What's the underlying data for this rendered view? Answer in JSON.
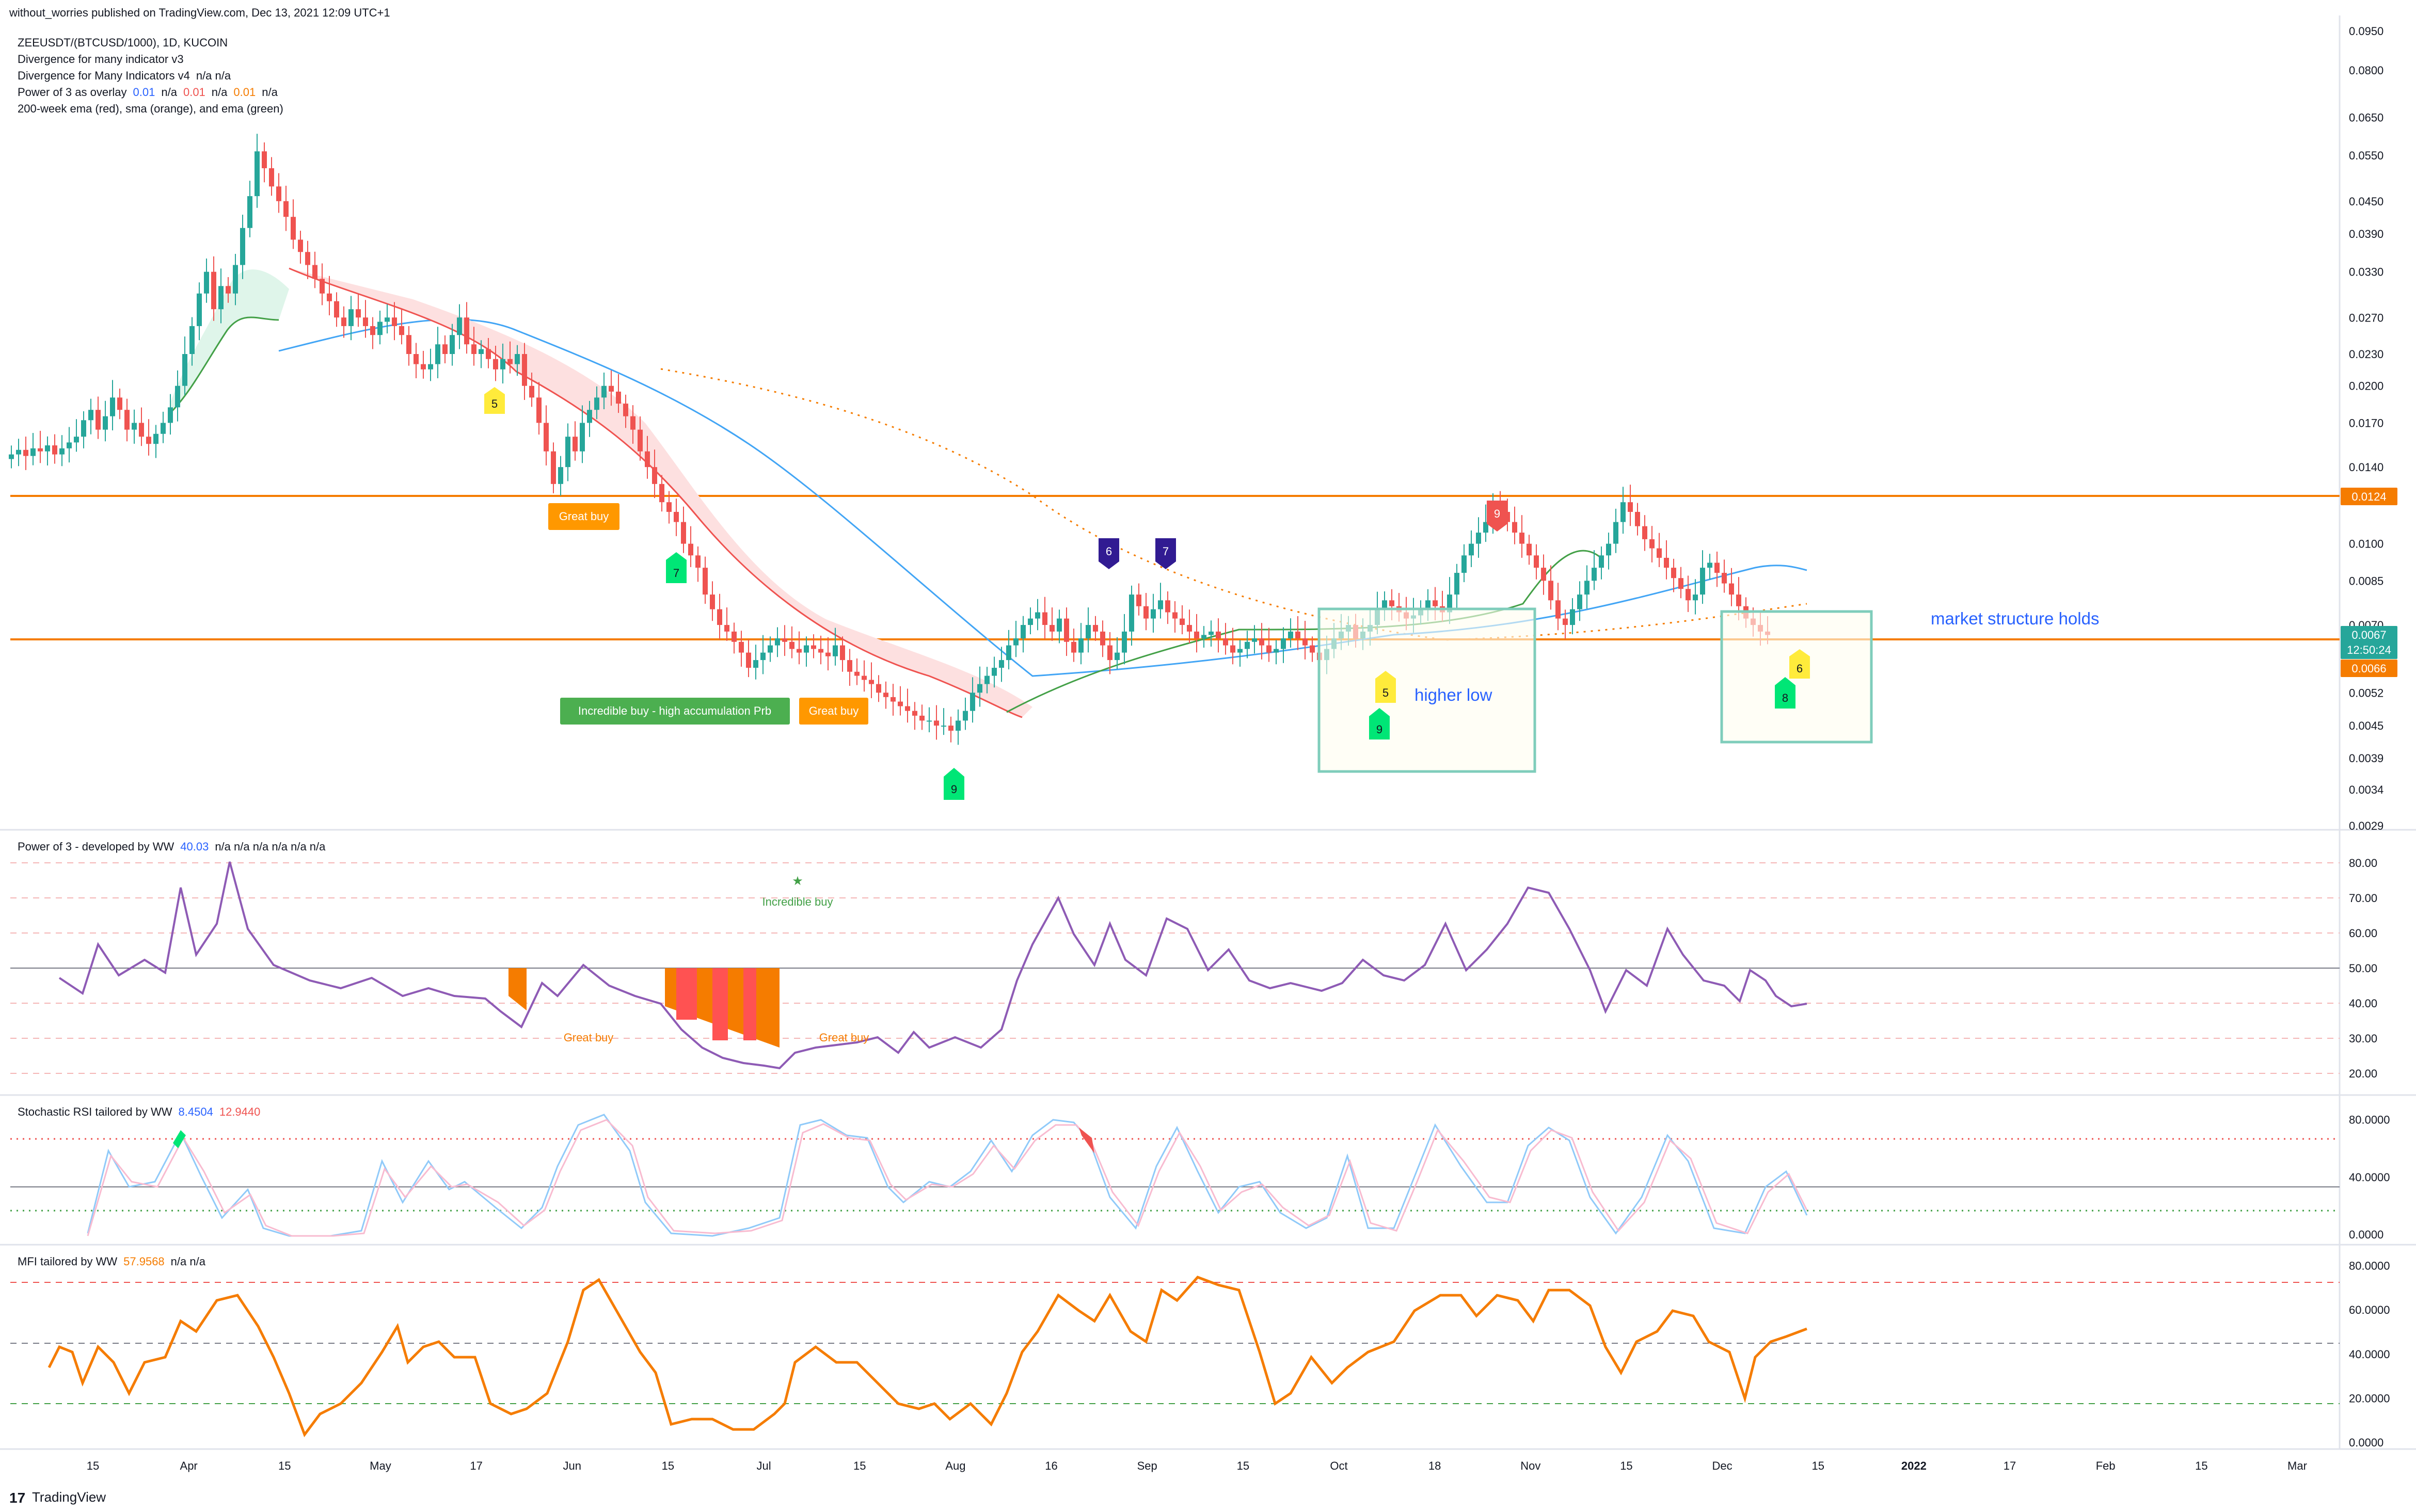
{
  "header": {
    "publish_line": "without_worries published on TradingView.com, Dec 13, 2021 12:09 UTC+1"
  },
  "legend": {
    "symbol_line": "ZEEUSDT/(BTCUSD/1000), 1D, KUCOIN",
    "indicator_1": "Divergence for many indicator v3",
    "indicator_2_name": "Divergence for Many Indicators v4",
    "indicator_2_vals": "n/a  n/a",
    "indicator_3_name": "Power of 3 as overlay",
    "indicator_3_v1": "0.01",
    "indicator_3_v2": "n/a",
    "indicator_3_v3": "0.01",
    "indicator_3_v4": "n/a",
    "indicator_3_v5": "0.01",
    "indicator_3_v6": "n/a",
    "indicator_4": "200-week ema (red), sma (orange), and ema (green)"
  },
  "panes": {
    "p3_title": "Power of 3 - developed by WW",
    "p3_value": "40.03",
    "p3_na": "n/a  n/a  n/a  n/a  n/a  n/a",
    "stoch_title": "Stochastic RSI tailored by WW",
    "stoch_k": "8.4504",
    "stoch_d": "12.9440",
    "mfi_title": "MFI tailored by WW",
    "mfi_value": "57.9568",
    "mfi_na": "n/a  n/a"
  },
  "annotations": {
    "great_buy_1": "Great buy",
    "great_buy_2": "Great buy",
    "incredible_buy_label": "Incredible buy - high accumulation Prb",
    "higher_low": "higher low",
    "market_structure": "market structure holds",
    "p3_great_buy_1": "Great buy",
    "p3_great_buy_2": "Great buy",
    "p3_incredible": "Incredible buy",
    "td_5a": "5",
    "td_7a": "7",
    "td_9a": "9",
    "td_6b": "6",
    "td_7b": "7",
    "td_9r": "9",
    "td_5b": "5",
    "td_9b": "9",
    "td_6c": "6",
    "td_8c": "8"
  },
  "price_badges": {
    "resistance": "0.0124",
    "last": "0.0067",
    "countdown": "12:50:24",
    "support": "0.0066"
  },
  "footer": {
    "brand": "TradingView"
  },
  "colors": {
    "up": "#26a69a",
    "down": "#ef5350",
    "orange_line": "#f57c00",
    "box": "#7fcdbb",
    "blue_text": "#2962ff",
    "text": "#131722"
  },
  "chart_data": {
    "type": "candlestick",
    "title": "ZEEUSDT/(BTCUSD/1000), 1D, KUCOIN",
    "y_scale": "log",
    "price_axis_ticks": [
      "0.0950",
      "0.0800",
      "0.0650",
      "0.0550",
      "0.0450",
      "0.0390",
      "0.0330",
      "0.0270",
      "0.0230",
      "0.0200",
      "0.0170",
      "0.0140",
      "0.0100",
      "0.0085",
      "0.0070",
      "0.0052",
      "0.0045",
      "0.0039",
      "0.0034",
      "0.0029"
    ],
    "time_axis_ticks": [
      "15",
      "Apr",
      "15",
      "May",
      "17",
      "Jun",
      "15",
      "Jul",
      "15",
      "Aug",
      "16",
      "Sep",
      "15",
      "Oct",
      "18",
      "Nov",
      "15",
      "Dec",
      "15",
      "2022",
      "17",
      "Feb",
      "15",
      "Mar"
    ],
    "horizontal_levels": [
      0.0124,
      0.0066
    ],
    "close_series": {
      "start": "2021-03-01",
      "interval": "1D",
      "values": [
        0.0148,
        0.0151,
        0.0147,
        0.0152,
        0.015,
        0.0154,
        0.0148,
        0.0152,
        0.0156,
        0.016,
        0.0172,
        0.018,
        0.0165,
        0.0175,
        0.019,
        0.018,
        0.0165,
        0.017,
        0.016,
        0.0155,
        0.0162,
        0.017,
        0.0182,
        0.02,
        0.023,
        0.026,
        0.03,
        0.033,
        0.028,
        0.031,
        0.03,
        0.034,
        0.04,
        0.046,
        0.056,
        0.052,
        0.048,
        0.045,
        0.042,
        0.038,
        0.036,
        0.034,
        0.032,
        0.03,
        0.029,
        0.027,
        0.026,
        0.028,
        0.027,
        0.026,
        0.025,
        0.0265,
        0.027,
        0.026,
        0.025,
        0.023,
        0.022,
        0.0215,
        0.022,
        0.024,
        0.023,
        0.025,
        0.027,
        0.024,
        0.023,
        0.0235,
        0.0225,
        0.0215,
        0.0225,
        0.022,
        0.023,
        0.02,
        0.019,
        0.017,
        0.015,
        0.013,
        0.014,
        0.016,
        0.015,
        0.017,
        0.018,
        0.019,
        0.02,
        0.0195,
        0.0185,
        0.0175,
        0.0165,
        0.015,
        0.014,
        0.013,
        0.012,
        0.0115,
        0.011,
        0.01,
        0.0095,
        0.009,
        0.008,
        0.0075,
        0.007,
        0.0068,
        0.0065,
        0.0062,
        0.0058,
        0.006,
        0.0062,
        0.0064,
        0.0066,
        0.0065,
        0.0063,
        0.0062,
        0.0064,
        0.0063,
        0.0062,
        0.0061,
        0.0064,
        0.006,
        0.0057,
        0.0056,
        0.0055,
        0.0054,
        0.0052,
        0.0051,
        0.005,
        0.0049,
        0.0048,
        0.0047,
        0.0046,
        0.0046,
        0.0045,
        0.0045,
        0.0044,
        0.0046,
        0.0048,
        0.0052,
        0.0054,
        0.0056,
        0.0058,
        0.006,
        0.0064,
        0.0066,
        0.007,
        0.0072,
        0.0074,
        0.007,
        0.0068,
        0.0072,
        0.0065,
        0.0062,
        0.0066,
        0.007,
        0.0068,
        0.0064,
        0.006,
        0.0062,
        0.0068,
        0.008,
        0.0076,
        0.0072,
        0.0075,
        0.0078,
        0.0074,
        0.0072,
        0.007,
        0.0068,
        0.0066,
        0.0067,
        0.0068,
        0.0066,
        0.0064,
        0.0062,
        0.0063,
        0.0065,
        0.0066,
        0.0064,
        0.0062,
        0.0063,
        0.0066,
        0.0068,
        0.0066,
        0.0064,
        0.0062,
        0.006,
        0.0063,
        0.0066,
        0.0068,
        0.007,
        0.0066,
        0.0068,
        0.007,
        0.0075,
        0.0078,
        0.0076,
        0.0074,
        0.0072,
        0.0073,
        0.0075,
        0.0078,
        0.0076,
        0.0074,
        0.008,
        0.0088,
        0.0095,
        0.01,
        0.0105,
        0.011,
        0.012,
        0.0115,
        0.011,
        0.0105,
        0.01,
        0.0095,
        0.009,
        0.0085,
        0.0078,
        0.0072,
        0.007,
        0.0075,
        0.008,
        0.0085,
        0.009,
        0.0095,
        0.01,
        0.011,
        0.012,
        0.0115,
        0.0108,
        0.0102,
        0.0098,
        0.0094,
        0.009,
        0.0086,
        0.0082,
        0.0078,
        0.008,
        0.009,
        0.0092,
        0.0088,
        0.0084,
        0.008,
        0.0076,
        0.0072,
        0.007,
        0.0068,
        0.0067
      ]
    },
    "indicator_panes": [
      {
        "name": "Power of 3 - developed by WW",
        "value": 40.03,
        "ylim": [
          20,
          80
        ],
        "ticks": [
          "80.00",
          "70.00",
          "60.00",
          "50.00",
          "40.00",
          "30.00",
          "20.00"
        ]
      },
      {
        "name": "Stochastic RSI tailored by WW",
        "k": 8.4504,
        "d": 12.944,
        "ylim": [
          0,
          100
        ],
        "ticks": [
          "80.0000",
          "40.0000",
          "0.0000"
        ]
      },
      {
        "name": "MFI tailored by WW",
        "value": 57.9568,
        "ylim": [
          0,
          100
        ],
        "ticks": [
          "80.0000",
          "60.0000",
          "40.0000",
          "20.0000",
          "0.0000"
        ]
      }
    ]
  }
}
